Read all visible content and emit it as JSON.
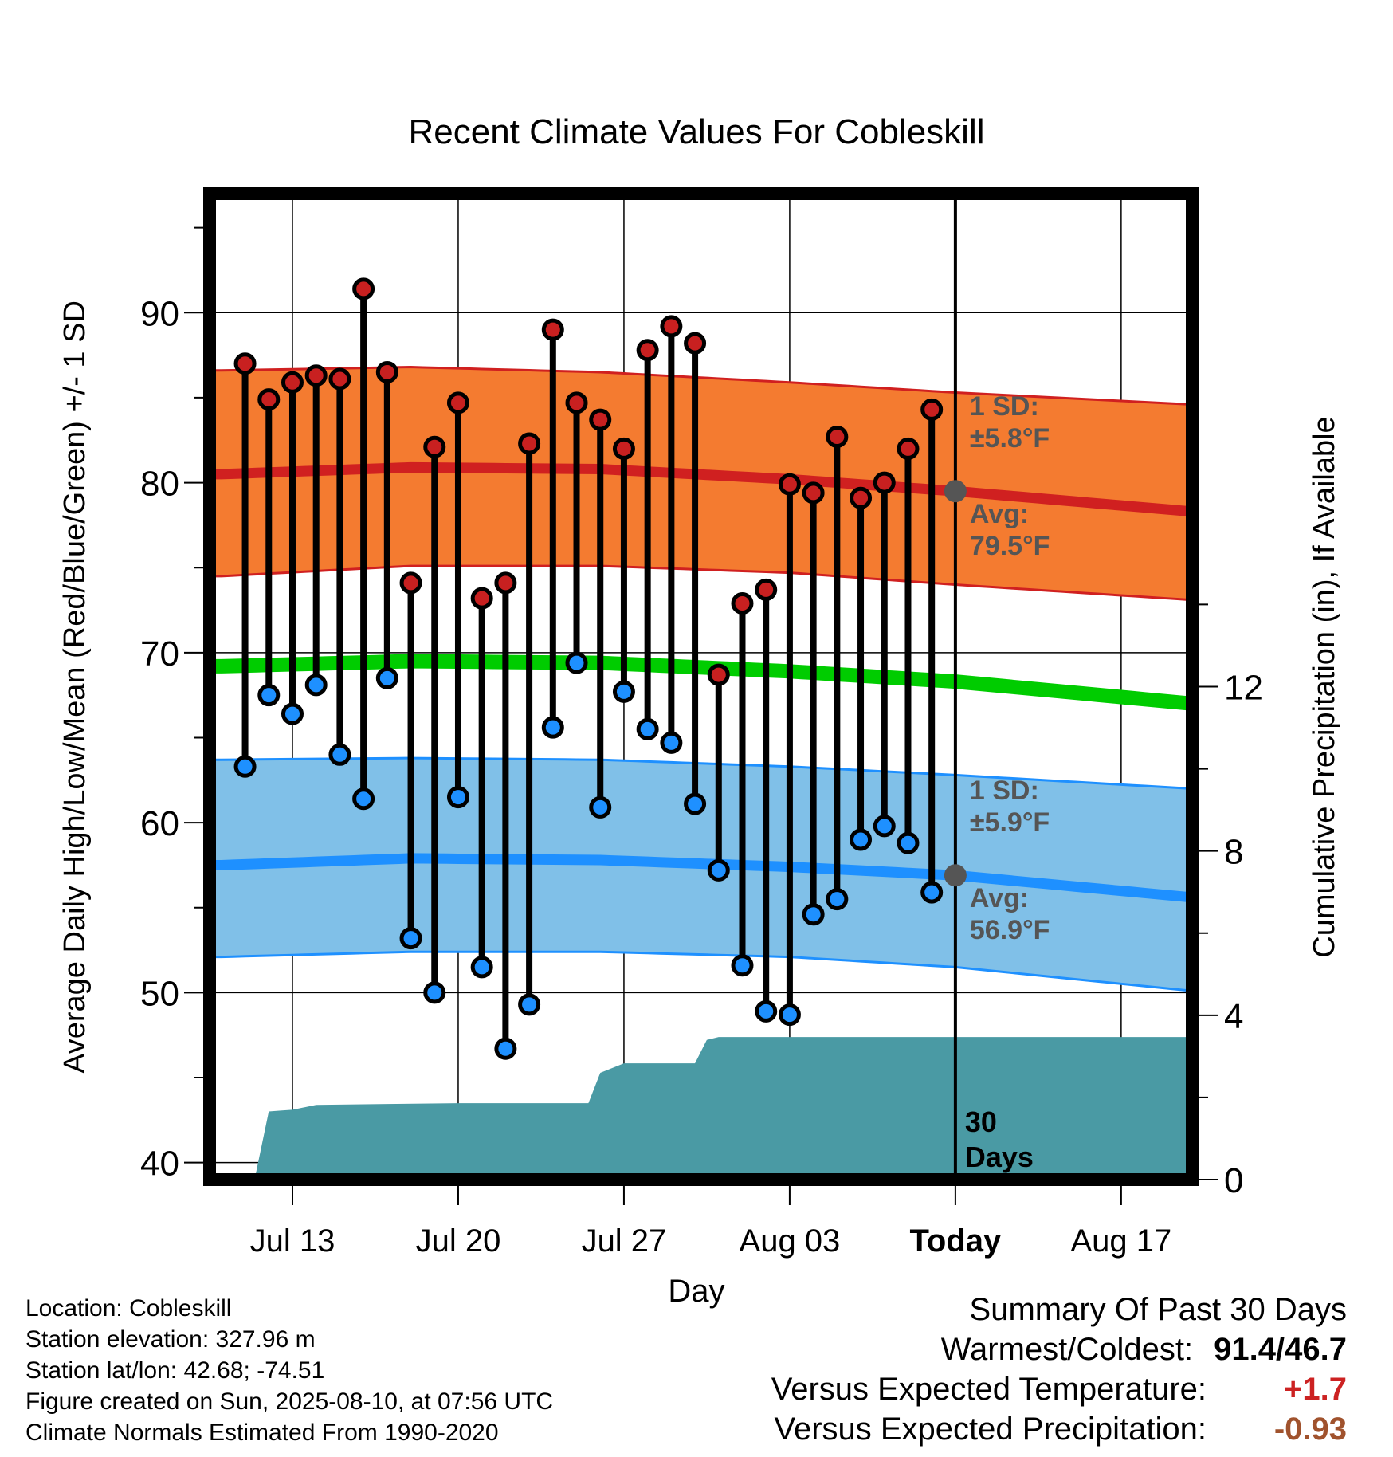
{
  "chart_data": {
    "type": "line",
    "title": "Recent Climate Values For Cobleskill",
    "xlabel": "Day",
    "ylabel": "Average Daily High/Low/Mean (Red/Blue/Green) +/- 1 SD",
    "y2label": "Cumulative Precipitation (in), If Available",
    "ylim": [
      39,
      97
    ],
    "y2lim": [
      0,
      24
    ],
    "y_ticks": [
      "40",
      "50",
      "60",
      "70",
      "80",
      "90"
    ],
    "y2_ticks": [
      "0",
      "4",
      "8",
      "12"
    ],
    "x_ticks": [
      {
        "day": 3,
        "label": "Jul 13"
      },
      {
        "day": 10,
        "label": "Jul 20"
      },
      {
        "day": 17,
        "label": "Jul 27"
      },
      {
        "day": 24,
        "label": "Aug 03"
      },
      {
        "day": 31,
        "label": "Today"
      },
      {
        "day": 38,
        "label": "Aug 17"
      }
    ],
    "xlim": [
      -0.5,
      41
    ],
    "today_day": 31,
    "days": [
      1,
      2,
      3,
      4,
      5,
      6,
      7,
      8,
      9,
      10,
      11,
      12,
      13,
      14,
      15,
      16,
      17,
      18,
      19,
      20,
      21,
      22,
      23,
      24,
      25,
      26,
      27,
      28,
      29,
      30
    ],
    "highs": [
      87.0,
      84.9,
      85.9,
      86.3,
      86.1,
      91.4,
      86.5,
      74.1,
      82.1,
      84.7,
      73.2,
      74.1,
      82.3,
      89.0,
      84.7,
      83.7,
      82.0,
      87.8,
      89.2,
      88.2,
      68.7,
      72.9,
      73.7,
      79.9,
      79.4,
      82.7,
      79.1,
      80.0,
      82.0,
      84.3
    ],
    "lows": [
      63.3,
      67.5,
      66.4,
      68.1,
      64.0,
      61.4,
      68.5,
      53.2,
      50.0,
      61.5,
      51.5,
      46.7,
      49.3,
      65.6,
      69.4,
      60.9,
      67.7,
      65.5,
      64.7,
      61.1,
      57.2,
      51.6,
      48.9,
      48.7,
      54.6,
      55.5,
      59.0,
      59.8,
      58.8,
      55.9
    ],
    "normal_high": {
      "day": [
        0,
        8,
        16,
        24,
        31,
        41
      ],
      "avg": [
        80.5,
        80.9,
        80.8,
        80.2,
        79.5,
        78.3
      ],
      "upper": [
        86.6,
        86.8,
        86.5,
        85.9,
        85.3,
        84.6
      ],
      "lower": [
        74.5,
        75.1,
        75.1,
        74.7,
        74.0,
        73.1
      ]
    },
    "normal_mean": {
      "day": [
        0,
        8,
        16,
        24,
        31,
        41
      ],
      "avg": [
        69.2,
        69.5,
        69.4,
        68.9,
        68.3,
        67.0
      ]
    },
    "normal_low": {
      "day": [
        0,
        8,
        16,
        24,
        31,
        41
      ],
      "avg": [
        57.5,
        57.9,
        57.8,
        57.4,
        56.9,
        55.6
      ],
      "upper": [
        63.7,
        63.8,
        63.7,
        63.3,
        62.8,
        62.0
      ],
      "lower": [
        52.1,
        52.4,
        52.4,
        52.1,
        51.5,
        50.1
      ]
    },
    "cum_precip": {
      "day": [
        0.5,
        1.4,
        2.0,
        2.5,
        3.0,
        4.0,
        7.0,
        10.0,
        14.0,
        15.0,
        15.5,
        16.0,
        17.0,
        19.0,
        20.0,
        20.5,
        21.0,
        31.0,
        41.0
      ],
      "inches": [
        0.0,
        0.0,
        1.66,
        1.68,
        1.7,
        1.82,
        1.84,
        1.86,
        1.86,
        1.86,
        1.86,
        2.6,
        2.83,
        2.83,
        2.83,
        3.4,
        3.47,
        3.47,
        3.47
      ]
    },
    "annotations": {
      "high_sd": [
        "1 SD:",
        "±5.8°F"
      ],
      "high_avg": [
        "Avg:",
        "79.5°F"
      ],
      "low_sd": [
        "1 SD:",
        "±5.9°F"
      ],
      "low_avg": [
        "Avg:",
        "56.9°F"
      ],
      "period": [
        "30",
        "Days"
      ]
    },
    "colors": {
      "high_band": "#f47b30",
      "high_line": "#d02020",
      "mean_line": "#00cc00",
      "low_band": "#80c0e8",
      "low_line": "#1e90ff",
      "precip": "#4a9aa4",
      "high_marker": "#c82020",
      "low_marker": "#1e90ff",
      "annotation_text": "#555555"
    }
  },
  "info": {
    "location": "Location: Cobleskill",
    "elevation": "Station elevation: 327.96 m",
    "latlon": "Station lat/lon: 42.68; -74.51",
    "created": "Figure created on Sun, 2025-08-10, at 07:56 UTC",
    "normals": "Climate Normals Estimated From 1990-2020"
  },
  "summary": {
    "heading": "Summary Of Past 30 Days",
    "warm_cold_label": "Warmest/Coldest:",
    "warmest": "91.4",
    "coldest": "46.7",
    "temp_label": "Versus Expected Temperature:",
    "temp_value": "+1.7",
    "temp_color": "#cc2222",
    "precip_label": "Versus Expected Precipitation:",
    "precip_value": "-0.93",
    "precip_color": "#a0522d"
  }
}
